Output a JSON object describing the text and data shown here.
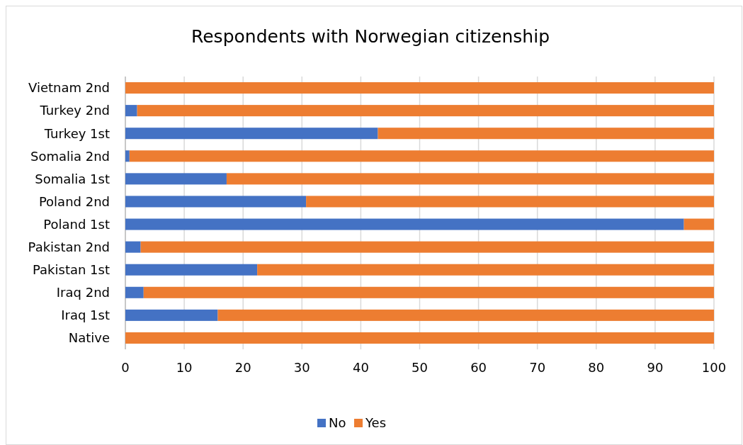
{
  "chart_data": {
    "type": "bar",
    "title": "Respondents with Norwegian citizenship",
    "orientation": "horizontal",
    "stacked": true,
    "categories": [
      "Vietnam 2nd",
      "Turkey 2nd",
      "Turkey 1st",
      "Somalia 2nd",
      "Somalia 1st",
      "Poland 2nd",
      "Poland 1st",
      "Pakistan 2nd",
      "Pakistan 1st",
      "Iraq 2nd",
      "Iraq 1st",
      "Native"
    ],
    "series": [
      {
        "name": "No",
        "color": "#4472c4",
        "values": [
          0,
          2.0,
          42.9,
          0.7,
          17.2,
          30.7,
          94.9,
          2.6,
          22.4,
          3.1,
          15.7,
          0
        ]
      },
      {
        "name": "Yes",
        "color": "#ed7d31",
        "values": [
          100,
          98.0,
          57.1,
          99.3,
          82.8,
          69.3,
          5.1,
          97.4,
          77.6,
          96.9,
          84.3,
          100
        ]
      }
    ],
    "xlim": [
      0,
      100
    ],
    "xticks": [
      0,
      10,
      20,
      30,
      40,
      50,
      60,
      70,
      80,
      90,
      100
    ],
    "grid": "x",
    "legend": "bottom"
  }
}
